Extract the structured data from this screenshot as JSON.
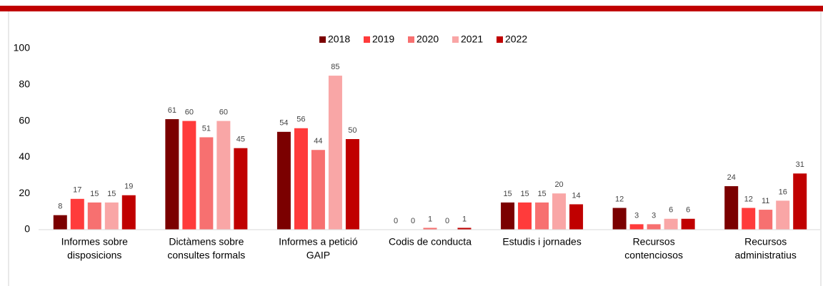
{
  "chart_data": {
    "type": "bar",
    "categories": [
      [
        "Informes sobre",
        "disposicions"
      ],
      [
        "Dictàmens sobre",
        "consultes formals"
      ],
      [
        "Informes a petició",
        "GAIP"
      ],
      [
        "Codis de conducta"
      ],
      [
        "Estudis i jornades"
      ],
      [
        "Recursos",
        "contenciosos"
      ],
      [
        "Recursos",
        "administratius"
      ]
    ],
    "series": [
      {
        "name": "2018",
        "color": "#7b0000",
        "values": [
          8,
          61,
          54,
          0,
          15,
          12,
          24
        ]
      },
      {
        "name": "2019",
        "color": "#ff3b3b",
        "values": [
          17,
          60,
          56,
          0,
          15,
          3,
          12
        ]
      },
      {
        "name": "2020",
        "color": "#f77070",
        "values": [
          15,
          51,
          44,
          1,
          15,
          3,
          11
        ]
      },
      {
        "name": "2021",
        "color": "#f9a6a6",
        "values": [
          15,
          60,
          85,
          0,
          20,
          6,
          16
        ]
      },
      {
        "name": "2022",
        "color": "#c00000",
        "values": [
          19,
          45,
          50,
          1,
          14,
          6,
          31
        ]
      }
    ],
    "ylim": [
      0,
      100
    ],
    "yticks": [
      0,
      20,
      40,
      60,
      80,
      100
    ],
    "grid": false,
    "legend": "top"
  }
}
